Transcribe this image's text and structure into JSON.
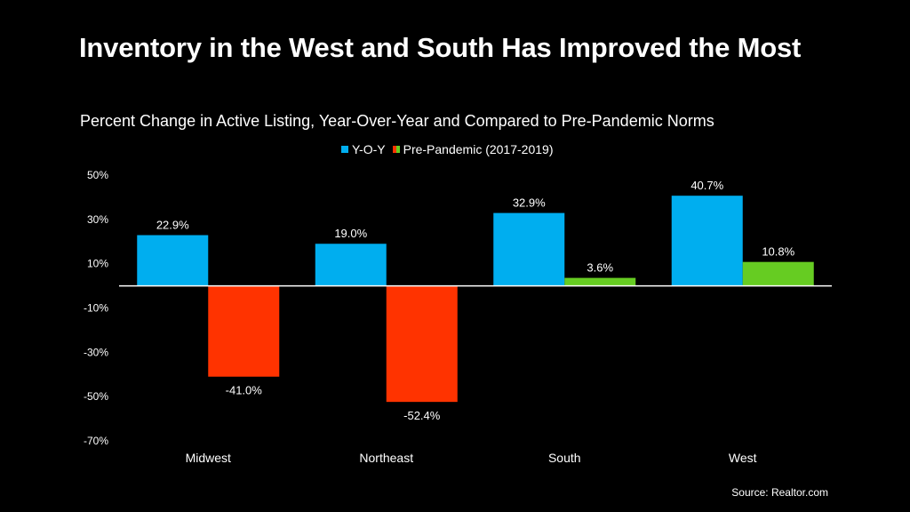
{
  "title": "Inventory in the West and South Has Improved the Most",
  "subtitle": "Percent Change in Active Listing, Year-Over-Year and Compared to Pre-Pandemic Norms",
  "source": "Source: Realtor.com",
  "colors": {
    "yoy": "#00aeef",
    "pre_negative": "#ff3300",
    "pre_positive": "#66cc22",
    "background": "#000000",
    "text": "#ffffff"
  },
  "chart_data": {
    "type": "bar",
    "title": "Inventory in the West and South Has Improved the Most",
    "subtitle": "Percent Change in Active Listing, Year-Over-Year and Compared to Pre-Pandemic Norms",
    "categories": [
      "Midwest",
      "Northeast",
      "South",
      "West"
    ],
    "series": [
      {
        "name": "Y-O-Y",
        "values": [
          22.9,
          19.0,
          32.9,
          40.7
        ],
        "labels": [
          "22.9%",
          "19.0%",
          "32.9%",
          "40.7%"
        ]
      },
      {
        "name": "Pre-Pandemic (2017-2019)",
        "values": [
          -41.0,
          -52.4,
          3.6,
          10.8
        ],
        "labels": [
          "-41.0%",
          "-52.4%",
          "3.6%",
          "10.8%"
        ]
      }
    ],
    "ylim": [
      -70,
      50
    ],
    "yticks": [
      50,
      30,
      10,
      -10,
      -30,
      -50,
      -70
    ],
    "ytick_labels": [
      "50%",
      "30%",
      "10%",
      "-10%",
      "-30%",
      "-50%",
      "-70%"
    ],
    "xlabel": "",
    "ylabel": "",
    "grid": false,
    "legend_position": "top-center"
  }
}
